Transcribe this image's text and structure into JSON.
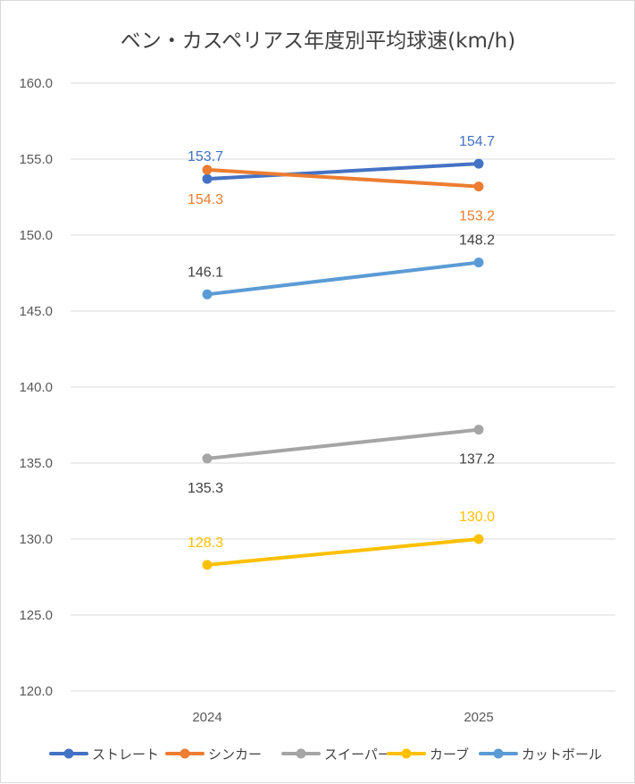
{
  "chart_data": {
    "type": "line",
    "title": "ベン・カスペリアス年度別平均球速(km/h)",
    "categories": [
      "2024",
      "2025"
    ],
    "ylim": [
      120.0,
      160.0
    ],
    "ytick_step": 5,
    "yticks": [
      "120.0",
      "125.0",
      "130.0",
      "135.0",
      "140.0",
      "145.0",
      "150.0",
      "155.0",
      "160.0"
    ],
    "grid": true,
    "legend_position": "bottom",
    "series": [
      {
        "name": "ストレート",
        "color": "#4472c4",
        "values": [
          153.7,
          154.7
        ],
        "labels": [
          "153.7",
          "154.7"
        ],
        "label_pos": [
          "above",
          "above"
        ]
      },
      {
        "name": "シンカー",
        "color": "#ed7d31",
        "values": [
          154.3,
          153.2
        ],
        "labels": [
          "154.3",
          "153.2"
        ],
        "label_pos": [
          "below",
          "below"
        ]
      },
      {
        "name": "スイーパー",
        "color": "#a5a5a5",
        "values": [
          135.3,
          137.2
        ],
        "labels": [
          "135.3",
          "137.2"
        ],
        "label_pos": [
          "below",
          "below"
        ]
      },
      {
        "name": "カーブ",
        "color": "#ffc000",
        "values": [
          128.3,
          130.0
        ],
        "labels": [
          "128.3",
          "130.0"
        ],
        "label_pos": [
          "above",
          "above"
        ]
      },
      {
        "name": "カットボール",
        "color": "#5b9bd5",
        "values": [
          146.1,
          148.2
        ],
        "labels": [
          "146.1",
          "148.2"
        ],
        "label_pos": [
          "above",
          "above"
        ]
      }
    ]
  }
}
